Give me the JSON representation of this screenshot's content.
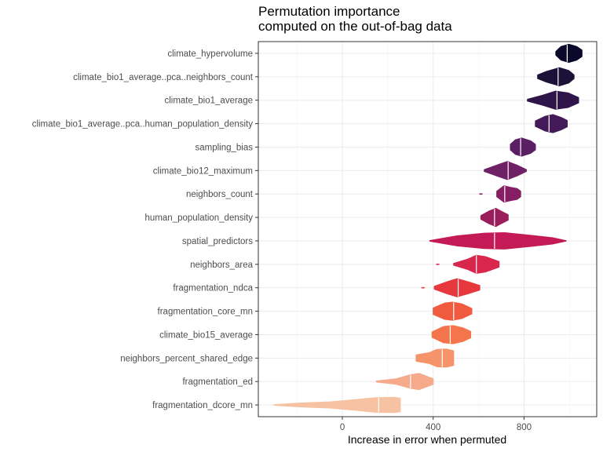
{
  "chart_data": {
    "type": "violin",
    "title": [
      "Permutation importance",
      "computed on the out-of-bag data"
    ],
    "xlabel": "Increase in error when permuted",
    "ylabel": "",
    "xlim": [
      -370,
      1120
    ],
    "x_ticks": [
      0,
      400,
      800
    ],
    "grid": true,
    "legend": "none",
    "categories": [
      {
        "name": "climate_hypervolume",
        "median": 990,
        "min": 940,
        "max": 1055,
        "color": "#0b0829",
        "shape": [
          [
            0,
            0.2
          ],
          [
            0.2,
            0.75
          ],
          [
            0.5,
            1
          ],
          [
            0.8,
            0.75
          ],
          [
            1,
            0.35
          ]
        ],
        "dots": []
      },
      {
        "name": "climate_bio1_average..pca..neighbors_count",
        "median": 950,
        "min": 860,
        "max": 1020,
        "color": "#1c1137",
        "shape": [
          [
            0,
            0.2
          ],
          [
            0.25,
            0.6
          ],
          [
            0.6,
            1
          ],
          [
            0.85,
            0.7
          ],
          [
            1,
            0.2
          ]
        ],
        "dots": []
      },
      {
        "name": "climate_bio1_average",
        "median": 945,
        "min": 815,
        "max": 1040,
        "color": "#2f1549",
        "shape": [
          [
            0,
            0.1
          ],
          [
            0.3,
            0.55
          ],
          [
            0.55,
            1
          ],
          [
            0.8,
            0.8
          ],
          [
            1,
            0.3
          ]
        ],
        "dots": []
      },
      {
        "name": "climate_bio1_average..pca..human_population_density",
        "median": 910,
        "min": 850,
        "max": 990,
        "color": "#431a57",
        "shape": [
          [
            0,
            0.3
          ],
          [
            0.3,
            0.8
          ],
          [
            0.55,
            1
          ],
          [
            0.8,
            0.7
          ],
          [
            1,
            0.35
          ]
        ],
        "dots": []
      },
      {
        "name": "sampling_bias",
        "median": 785,
        "min": 740,
        "max": 850,
        "color": "#5a1e62",
        "shape": [
          [
            0,
            0.3
          ],
          [
            0.2,
            0.8
          ],
          [
            0.45,
            1
          ],
          [
            0.8,
            0.7
          ],
          [
            1,
            0.3
          ]
        ],
        "dots": []
      },
      {
        "name": "climate_bio12_maximum",
        "median": 730,
        "min": 625,
        "max": 810,
        "color": "#6f2166",
        "shape": [
          [
            0,
            0.1
          ],
          [
            0.3,
            0.6
          ],
          [
            0.55,
            1
          ],
          [
            0.8,
            0.55
          ],
          [
            1,
            0.1
          ]
        ],
        "dots": []
      },
      {
        "name": "neighbors_count",
        "median": 715,
        "min": 680,
        "max": 785,
        "color": "#851e62",
        "shape": [
          [
            0,
            0.3
          ],
          [
            0.3,
            0.9
          ],
          [
            0.55,
            0.75
          ],
          [
            0.85,
            0.6
          ],
          [
            1,
            0.3
          ]
        ],
        "dots": [
          610
        ]
      },
      {
        "name": "human_population_density",
        "median": 670,
        "min": 610,
        "max": 730,
        "color": "#9a1d5c",
        "shape": [
          [
            0,
            0.2
          ],
          [
            0.3,
            0.7
          ],
          [
            0.55,
            1
          ],
          [
            0.8,
            0.6
          ],
          [
            1,
            0.3
          ]
        ],
        "dots": []
      },
      {
        "name": "spatial_predictors",
        "median": 670,
        "min": 385,
        "max": 985,
        "color": "#c41a55",
        "shape": [
          [
            0,
            0.03
          ],
          [
            0.2,
            0.55
          ],
          [
            0.4,
            0.85
          ],
          [
            0.55,
            0.9
          ],
          [
            0.75,
            0.6
          ],
          [
            0.9,
            0.35
          ],
          [
            1,
            0.02
          ]
        ],
        "dots": []
      },
      {
        "name": "neighbors_area",
        "median": 590,
        "min": 490,
        "max": 690,
        "color": "#d8264c",
        "shape": [
          [
            0,
            0.1
          ],
          [
            0.3,
            0.55
          ],
          [
            0.5,
            1
          ],
          [
            0.7,
            0.85
          ],
          [
            1,
            0.3
          ]
        ],
        "dots": [
          420
        ]
      },
      {
        "name": "fragmentation_ndca",
        "median": 510,
        "min": 405,
        "max": 605,
        "color": "#e6383d",
        "shape": [
          [
            0,
            0.15
          ],
          [
            0.3,
            0.7
          ],
          [
            0.5,
            1
          ],
          [
            0.75,
            0.65
          ],
          [
            1,
            0.25
          ]
        ],
        "dots": [
          355
        ]
      },
      {
        "name": "fragmentation_core_mn",
        "median": 490,
        "min": 400,
        "max": 570,
        "color": "#f05a3e",
        "shape": [
          [
            0,
            0.35
          ],
          [
            0.3,
            0.9
          ],
          [
            0.5,
            1
          ],
          [
            0.75,
            0.8
          ],
          [
            1,
            0.3
          ]
        ],
        "dots": []
      },
      {
        "name": "climate_bio15_average",
        "median": 475,
        "min": 395,
        "max": 565,
        "color": "#f4754b",
        "shape": [
          [
            0,
            0.3
          ],
          [
            0.3,
            0.9
          ],
          [
            0.55,
            1
          ],
          [
            0.8,
            0.75
          ],
          [
            1,
            0.35
          ]
        ],
        "dots": []
      },
      {
        "name": "neighbors_percent_shared_edge",
        "median": 440,
        "min": 325,
        "max": 490,
        "color": "#f5936b",
        "shape": [
          [
            0,
            0.35
          ],
          [
            0.35,
            0.6
          ],
          [
            0.55,
            0.95
          ],
          [
            0.8,
            1
          ],
          [
            1,
            0.8
          ]
        ],
        "dots": []
      },
      {
        "name": "fragmentation_ed",
        "median": 300,
        "min": 150,
        "max": 400,
        "color": "#f5ab8b",
        "shape": [
          [
            0,
            0.05
          ],
          [
            0.35,
            0.3
          ],
          [
            0.6,
            0.75
          ],
          [
            0.75,
            0.9
          ],
          [
            1,
            0.3
          ]
        ],
        "dots": []
      },
      {
        "name": "fragmentation_dcore_mn",
        "median": 160,
        "min": -300,
        "max": 255,
        "color": "#f6c2a2",
        "shape": [
          [
            0,
            0.03
          ],
          [
            0.2,
            0.2
          ],
          [
            0.45,
            0.35
          ],
          [
            0.65,
            0.6
          ],
          [
            0.8,
            0.8
          ],
          [
            0.95,
            0.85
          ],
          [
            1,
            0.75
          ]
        ],
        "dots": []
      }
    ]
  }
}
